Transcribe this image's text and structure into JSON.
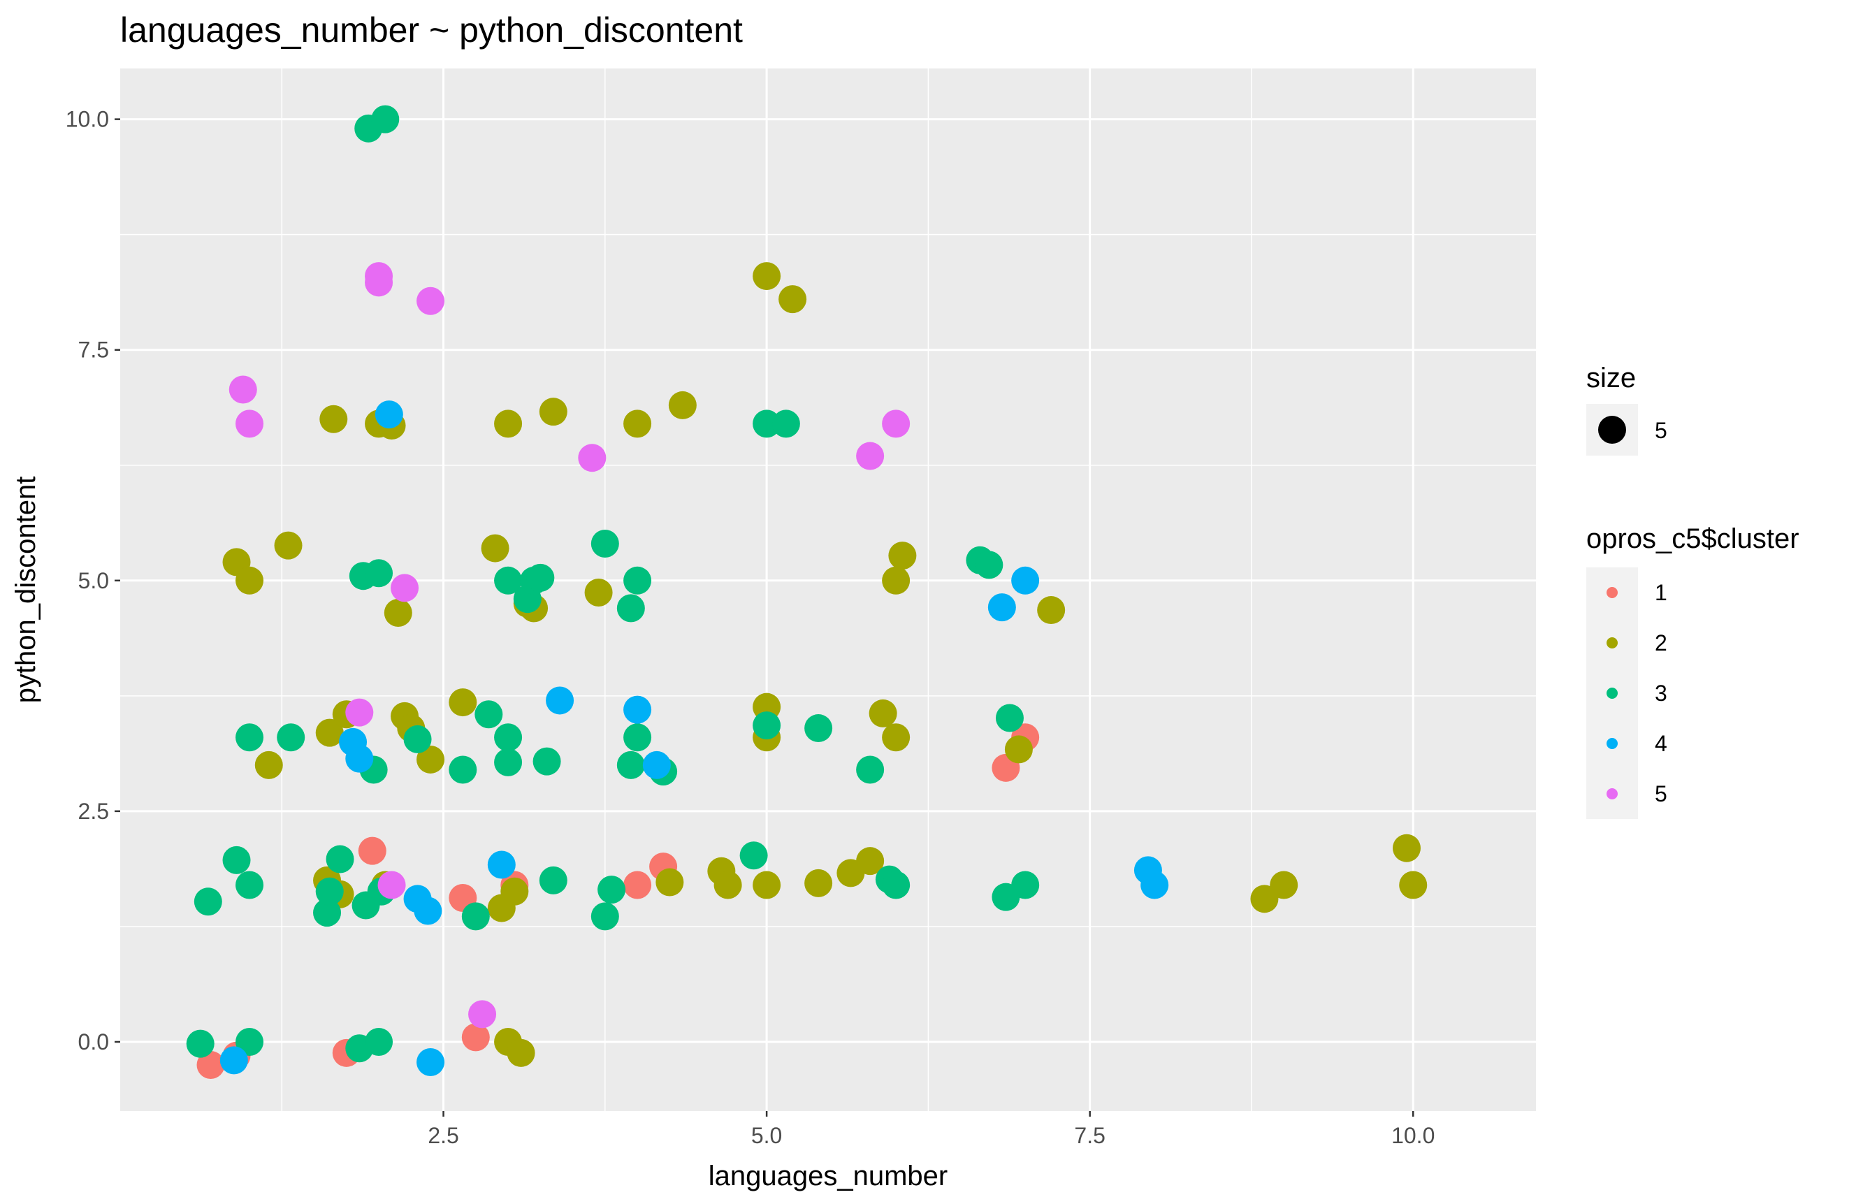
{
  "chart_data": {
    "type": "scatter",
    "title": "languages_number ~ python_discontent",
    "xlabel": "languages_number",
    "ylabel": "python_discontent",
    "xlim": [
      0.0,
      10.95
    ],
    "ylim": [
      -0.75,
      10.55
    ],
    "x_ticks": [
      2.5,
      5.0,
      7.5,
      10.0
    ],
    "x_tick_labels": [
      "2.5",
      "5.0",
      "7.5",
      "10.0"
    ],
    "y_ticks": [
      0.0,
      2.5,
      5.0,
      7.5,
      10.0
    ],
    "y_tick_labels": [
      "0.0",
      "2.5",
      "5.0",
      "7.5",
      "10.0"
    ],
    "grid": true,
    "legend_position": "right",
    "size_legend": {
      "title": "size",
      "label": "5"
    },
    "color_legend": {
      "title": "opros_c5$cluster"
    },
    "series": [
      {
        "name": "1",
        "color": "#F8766D",
        "x": [
          0.7,
          0.9,
          1.75,
          1.95,
          2.65,
          2.75,
          3.05,
          4.0,
          4.2,
          6.85,
          7.0
        ],
        "y": [
          -0.25,
          -0.15,
          -0.12,
          2.07,
          1.56,
          0.05,
          1.7,
          1.7,
          1.9,
          2.97,
          3.3
        ]
      },
      {
        "name": "2",
        "color": "#A3A500",
        "x": [
          0.9,
          1.0,
          1.15,
          1.3,
          1.6,
          1.62,
          1.65,
          1.7,
          1.75,
          2.0,
          2.05,
          2.1,
          2.15,
          2.2,
          2.25,
          2.4,
          2.65,
          2.9,
          2.95,
          3.0,
          3.0,
          3.05,
          3.1,
          3.15,
          3.2,
          3.35,
          3.7,
          4.0,
          4.25,
          4.35,
          4.65,
          4.7,
          5.0,
          5.0,
          5.0,
          5.0,
          5.2,
          5.4,
          5.65,
          5.8,
          5.9,
          6.0,
          6.0,
          6.05,
          6.95,
          7.2,
          8.85,
          9.0,
          9.95,
          10.0
        ],
        "y": [
          5.2,
          5.0,
          3.0,
          5.38,
          1.75,
          3.35,
          6.75,
          1.6,
          3.55,
          6.7,
          1.7,
          6.68,
          4.65,
          3.53,
          3.4,
          3.06,
          3.68,
          5.35,
          1.45,
          6.7,
          0.0,
          1.63,
          -0.12,
          4.75,
          4.7,
          6.83,
          4.87,
          6.7,
          1.73,
          6.9,
          1.85,
          1.7,
          8.3,
          3.3,
          3.63,
          1.7,
          8.05,
          1.72,
          1.83,
          1.96,
          3.56,
          5.0,
          3.3,
          5.27,
          3.17,
          4.68,
          1.55,
          1.7,
          2.1,
          1.7
        ]
      },
      {
        "name": "3",
        "color": "#00BF7D",
        "x": [
          0.62,
          0.68,
          0.9,
          1.0,
          1.0,
          1.0,
          1.32,
          1.6,
          1.62,
          1.7,
          1.85,
          1.88,
          1.9,
          1.92,
          1.96,
          2.0,
          2.0,
          2.02,
          2.05,
          2.3,
          2.65,
          2.75,
          2.85,
          3.0,
          3.0,
          3.0,
          3.15,
          3.2,
          3.25,
          3.3,
          3.35,
          3.75,
          3.75,
          3.8,
          3.95,
          3.95,
          4.0,
          4.0,
          4.2,
          4.9,
          5.0,
          5.0,
          5.15,
          5.4,
          5.8,
          5.95,
          6.0,
          6.65,
          6.72,
          6.85,
          6.88,
          7.0
        ],
        "y": [
          -0.02,
          1.52,
          1.97,
          1.7,
          3.3,
          0.0,
          3.3,
          1.4,
          1.63,
          1.98,
          -0.07,
          5.05,
          1.48,
          9.9,
          2.95,
          5.08,
          0.0,
          1.63,
          10.0,
          3.28,
          2.95,
          1.36,
          3.55,
          5.0,
          3.3,
          3.03,
          4.8,
          5.0,
          5.03,
          3.04,
          1.75,
          5.4,
          1.36,
          1.65,
          4.7,
          3.0,
          5.0,
          3.3,
          2.93,
          2.02,
          3.43,
          6.7,
          6.7,
          3.4,
          2.95,
          1.76,
          1.7,
          5.22,
          5.17,
          1.57,
          3.51,
          1.7
        ]
      },
      {
        "name": "4",
        "color": "#00B0F6",
        "x": [
          0.88,
          1.8,
          1.85,
          2.08,
          2.3,
          2.38,
          2.4,
          2.95,
          3.4,
          4.0,
          4.15,
          6.82,
          7.0,
          7.95,
          8.0
        ],
        "y": [
          -0.2,
          3.25,
          3.07,
          6.8,
          1.55,
          1.42,
          -0.22,
          1.92,
          3.7,
          3.6,
          3.0,
          4.71,
          5.0,
          1.86,
          1.7
        ]
      },
      {
        "name": "5",
        "color": "#E76BF3",
        "x": [
          0.95,
          1.0,
          1.85,
          2.0,
          2.0,
          2.1,
          2.2,
          2.4,
          2.8,
          3.65,
          5.8,
          6.0
        ],
        "y": [
          7.07,
          6.7,
          3.57,
          8.3,
          8.23,
          1.7,
          4.92,
          8.03,
          0.3,
          6.33,
          6.35,
          6.7
        ]
      }
    ]
  }
}
